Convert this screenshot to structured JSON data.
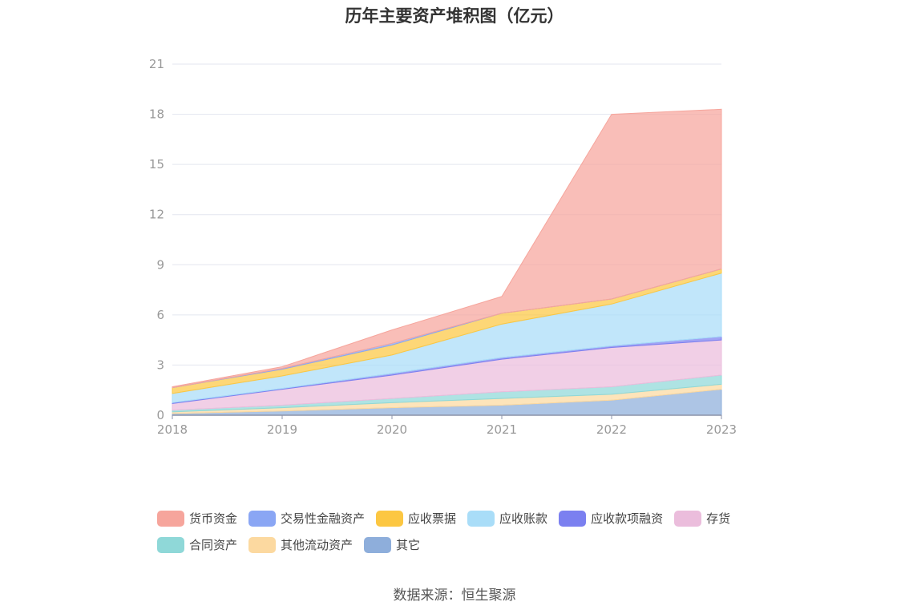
{
  "title": "历年主要资产堆积图（亿元）",
  "source": "数据来源：恒生聚源",
  "chart_data": {
    "type": "area",
    "stacked": true,
    "x": [
      "2018",
      "2019",
      "2020",
      "2021",
      "2022",
      "2023"
    ],
    "ylim": [
      0,
      21
    ],
    "yticks": [
      0,
      3,
      6,
      9,
      12,
      15,
      18,
      21
    ],
    "grid": true,
    "legend_position": "bottom",
    "series": [
      {
        "name": "其它",
        "color": "#8eaedb",
        "values": [
          0.1,
          0.25,
          0.45,
          0.6,
          0.9,
          1.55
        ]
      },
      {
        "name": "其他流动资产",
        "color": "#fcd9a0",
        "values": [
          0.1,
          0.2,
          0.3,
          0.4,
          0.35,
          0.3
        ]
      },
      {
        "name": "合同资产",
        "color": "#8fd8d8",
        "values": [
          0.1,
          0.15,
          0.25,
          0.4,
          0.45,
          0.55
        ]
      },
      {
        "name": "存货",
        "color": "#ebbddc",
        "values": [
          0.4,
          0.95,
          1.4,
          1.95,
          2.35,
          2.1
        ]
      },
      {
        "name": "应收款项融资",
        "color": "#7b80f0",
        "values": [
          0.05,
          0.05,
          0.1,
          0.1,
          0.1,
          0.2
        ]
      },
      {
        "name": "应收账款",
        "color": "#a9ddf8",
        "values": [
          0.55,
          0.75,
          1.1,
          2.0,
          2.5,
          3.8
        ]
      },
      {
        "name": "应收票据",
        "color": "#fcc742",
        "values": [
          0.35,
          0.4,
          0.6,
          0.65,
          0.3,
          0.25
        ]
      },
      {
        "name": "交易性金融资产",
        "color": "#8aa6f4",
        "values": [
          0.0,
          0.05,
          0.1,
          0.0,
          0.0,
          0.0
        ]
      },
      {
        "name": "货币资金",
        "color": "#f6a59c",
        "values": [
          0.05,
          0.1,
          0.8,
          1.0,
          11.05,
          9.55
        ]
      }
    ]
  },
  "legend": [
    [
      "货币资金",
      "交易性金融资产",
      "应收票据",
      "应收账款",
      "应收款项融资",
      "存货"
    ],
    [
      "合同资产",
      "其他流动资产",
      "其它"
    ]
  ]
}
